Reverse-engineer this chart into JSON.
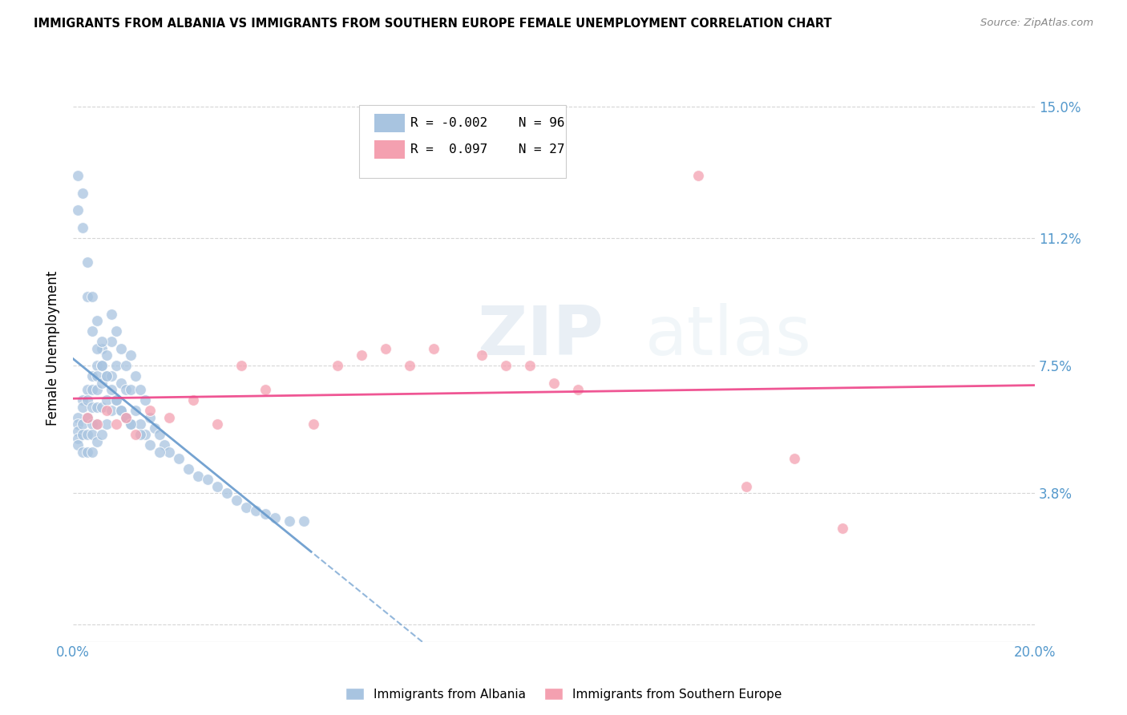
{
  "title": "IMMIGRANTS FROM ALBANIA VS IMMIGRANTS FROM SOUTHERN EUROPE FEMALE UNEMPLOYMENT CORRELATION CHART",
  "source": "Source: ZipAtlas.com",
  "ylabel": "Female Unemployment",
  "xlim": [
    0.0,
    0.2
  ],
  "ylim": [
    -0.005,
    0.165
  ],
  "yticks": [
    0.0,
    0.038,
    0.075,
    0.112,
    0.15
  ],
  "ytick_labels": [
    "",
    "3.8%",
    "7.5%",
    "11.2%",
    "15.0%"
  ],
  "xticks": [
    0.0,
    0.04,
    0.08,
    0.12,
    0.16,
    0.2
  ],
  "xtick_labels": [
    "0.0%",
    "",
    "",
    "",
    "",
    "20.0%"
  ],
  "grid_color": "#cccccc",
  "background_color": "#ffffff",
  "color_albania": "#a8c4e0",
  "color_southern": "#f4a0b0",
  "color_albania_line": "#6699cc",
  "color_southern_line": "#ee4488",
  "color_axis_labels": "#5599cc",
  "watermark_zip": "ZIP",
  "watermark_atlas": "atlas",
  "albania_x": [
    0.001,
    0.001,
    0.001,
    0.001,
    0.001,
    0.002,
    0.002,
    0.002,
    0.002,
    0.002,
    0.003,
    0.003,
    0.003,
    0.003,
    0.003,
    0.004,
    0.004,
    0.004,
    0.004,
    0.004,
    0.004,
    0.005,
    0.005,
    0.005,
    0.005,
    0.005,
    0.005,
    0.006,
    0.006,
    0.006,
    0.006,
    0.006,
    0.007,
    0.007,
    0.007,
    0.007,
    0.008,
    0.008,
    0.008,
    0.008,
    0.009,
    0.009,
    0.009,
    0.01,
    0.01,
    0.01,
    0.011,
    0.011,
    0.011,
    0.012,
    0.012,
    0.012,
    0.013,
    0.013,
    0.014,
    0.014,
    0.015,
    0.015,
    0.016,
    0.017,
    0.018,
    0.019,
    0.02,
    0.022,
    0.024,
    0.026,
    0.028,
    0.03,
    0.032,
    0.034,
    0.036,
    0.038,
    0.04,
    0.042,
    0.045,
    0.048,
    0.001,
    0.001,
    0.002,
    0.002,
    0.003,
    0.003,
    0.004,
    0.004,
    0.005,
    0.005,
    0.006,
    0.006,
    0.007,
    0.008,
    0.009,
    0.01,
    0.011,
    0.012,
    0.014,
    0.016,
    0.018
  ],
  "albania_y": [
    0.06,
    0.058,
    0.056,
    0.054,
    0.052,
    0.065,
    0.063,
    0.058,
    0.055,
    0.05,
    0.068,
    0.065,
    0.06,
    0.055,
    0.05,
    0.072,
    0.068,
    0.063,
    0.058,
    0.055,
    0.05,
    0.075,
    0.072,
    0.068,
    0.063,
    0.058,
    0.053,
    0.08,
    0.075,
    0.07,
    0.063,
    0.055,
    0.078,
    0.072,
    0.065,
    0.058,
    0.09,
    0.082,
    0.072,
    0.062,
    0.085,
    0.075,
    0.065,
    0.08,
    0.07,
    0.062,
    0.075,
    0.068,
    0.06,
    0.078,
    0.068,
    0.058,
    0.072,
    0.062,
    0.068,
    0.058,
    0.065,
    0.055,
    0.06,
    0.057,
    0.055,
    0.052,
    0.05,
    0.048,
    0.045,
    0.043,
    0.042,
    0.04,
    0.038,
    0.036,
    0.034,
    0.033,
    0.032,
    0.031,
    0.03,
    0.03,
    0.13,
    0.12,
    0.125,
    0.115,
    0.105,
    0.095,
    0.095,
    0.085,
    0.088,
    0.08,
    0.082,
    0.075,
    0.072,
    0.068,
    0.065,
    0.062,
    0.06,
    0.058,
    0.055,
    0.052,
    0.05
  ],
  "southern_x": [
    0.003,
    0.005,
    0.007,
    0.009,
    0.011,
    0.013,
    0.016,
    0.02,
    0.025,
    0.03,
    0.035,
    0.04,
    0.05,
    0.055,
    0.06,
    0.065,
    0.07,
    0.075,
    0.085,
    0.09,
    0.095,
    0.1,
    0.105,
    0.13,
    0.14,
    0.15,
    0.16
  ],
  "southern_y": [
    0.06,
    0.058,
    0.062,
    0.058,
    0.06,
    0.055,
    0.062,
    0.06,
    0.065,
    0.058,
    0.075,
    0.068,
    0.058,
    0.075,
    0.078,
    0.08,
    0.075,
    0.08,
    0.078,
    0.075,
    0.075,
    0.07,
    0.068,
    0.13,
    0.04,
    0.048,
    0.028
  ]
}
